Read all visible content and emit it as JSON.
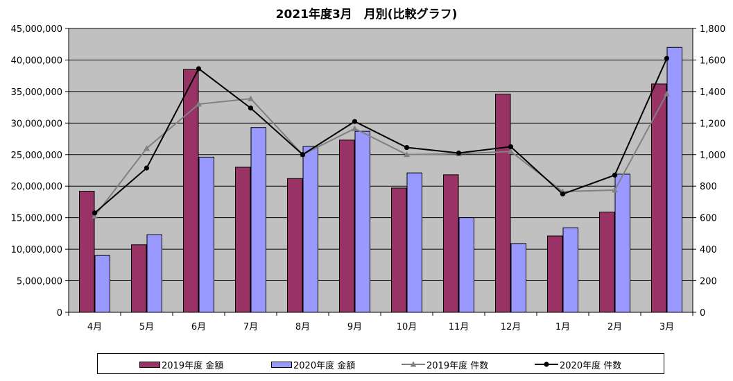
{
  "chart_data": {
    "type": "bar",
    "title": "2021年度3月　月別(比較グラフ)",
    "categories": [
      "4月",
      "5月",
      "6月",
      "7月",
      "8月",
      "9月",
      "10月",
      "11月",
      "12月",
      "1月",
      "2月",
      "3月"
    ],
    "series": [
      {
        "name": "2019年度 金額",
        "kind": "bar",
        "axis": "left",
        "color": "#993366",
        "values": [
          19200000,
          10700000,
          38500000,
          23000000,
          21200000,
          27300000,
          19700000,
          21800000,
          34600000,
          12100000,
          15900000,
          36200000
        ]
      },
      {
        "name": "2020年度 金額",
        "kind": "bar",
        "axis": "left",
        "color": "#9999ff",
        "values": [
          9000000,
          12300000,
          24600000,
          29300000,
          26300000,
          28700000,
          22100000,
          15000000,
          10900000,
          13400000,
          21900000,
          42000000
        ]
      },
      {
        "name": "2019年度 件数",
        "kind": "line",
        "axis": "right",
        "color": "#808080",
        "marker": "triangle",
        "values": [
          610,
          1040,
          1320,
          1355,
          1000,
          1165,
          1000,
          1005,
          1020,
          765,
          775,
          1385
        ]
      },
      {
        "name": "2020年度 件数",
        "kind": "line",
        "axis": "right",
        "color": "#000000",
        "marker": "circle",
        "values": [
          630,
          915,
          1545,
          1295,
          1000,
          1210,
          1045,
          1010,
          1050,
          750,
          870,
          1610
        ]
      }
    ],
    "y_left": {
      "min": 0,
      "max": 45000000,
      "step": 5000000,
      "tick_labels": [
        "0",
        "5,000,000",
        "10,000,000",
        "15,000,000",
        "20,000,000",
        "25,000,000",
        "30,000,000",
        "35,000,000",
        "40,000,000",
        "45,000,000"
      ]
    },
    "y_right": {
      "min": 0,
      "max": 1800,
      "step": 200,
      "tick_labels": [
        "0",
        "200",
        "400",
        "600",
        "800",
        "1,000",
        "1,200",
        "1,400",
        "1,600",
        "1,800"
      ]
    },
    "plot_background": "#c0c0c0",
    "grid": true,
    "legend_position": "bottom"
  }
}
